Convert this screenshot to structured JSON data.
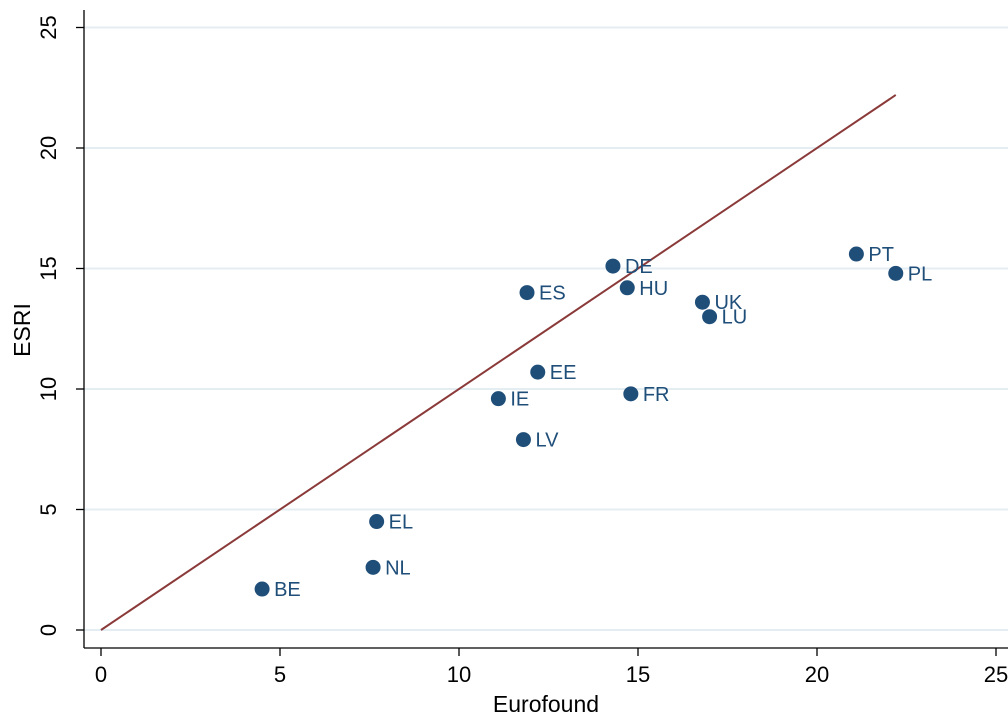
{
  "chart_data": {
    "type": "scatter",
    "title": "",
    "xlabel": "Eurofound",
    "ylabel": "ESRI",
    "xlim": [
      0,
      25
    ],
    "ylim": [
      0,
      25
    ],
    "x_ticks": [
      "0",
      "5",
      "10",
      "15",
      "20",
      "25"
    ],
    "y_ticks": [
      "0",
      "5",
      "10",
      "15",
      "20",
      "25"
    ],
    "grid": "horizontal",
    "reference_line": {
      "from": [
        0,
        0
      ],
      "to": [
        22.2,
        22.2
      ],
      "color": "#8B3A3A"
    },
    "marker_color": "#1F4E79",
    "points": [
      {
        "label": "BE",
        "x": 4.5,
        "y": 1.7
      },
      {
        "label": "NL",
        "x": 7.6,
        "y": 2.6
      },
      {
        "label": "EL",
        "x": 7.7,
        "y": 4.5
      },
      {
        "label": "LV",
        "x": 11.8,
        "y": 7.9
      },
      {
        "label": "IE",
        "x": 11.1,
        "y": 9.6
      },
      {
        "label": "EE",
        "x": 12.2,
        "y": 10.7
      },
      {
        "label": "ES",
        "x": 11.9,
        "y": 14.0
      },
      {
        "label": "DE",
        "x": 14.3,
        "y": 15.1
      },
      {
        "label": "HU",
        "x": 14.7,
        "y": 14.2
      },
      {
        "label": "FR",
        "x": 14.8,
        "y": 9.8
      },
      {
        "label": "UK",
        "x": 16.8,
        "y": 13.6
      },
      {
        "label": "LU",
        "x": 17.0,
        "y": 13.0
      },
      {
        "label": "PT",
        "x": 21.1,
        "y": 15.6
      },
      {
        "label": "PL",
        "x": 22.2,
        "y": 14.8
      }
    ]
  }
}
